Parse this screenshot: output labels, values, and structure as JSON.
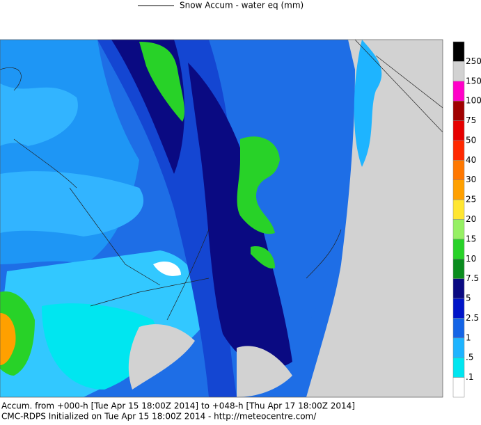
{
  "legend": {
    "title": "Snow Accum - water eq (mm)"
  },
  "colorbar": {
    "colors": [
      "#000000",
      "#d2d2d2",
      "#ff00c8",
      "#a00000",
      "#e60000",
      "#ff2800",
      "#ff7800",
      "#ffa000",
      "#ffe632",
      "#96f064",
      "#28d228",
      "#0a8c1e",
      "#0a0a82",
      "#0014c8",
      "#1464e6",
      "#1eb4ff",
      "#00e6f0",
      "#ffffff"
    ],
    "labels": [
      "250",
      "150",
      "100",
      "75",
      "50",
      "40",
      "30",
      "25",
      "20",
      "15",
      "10",
      "7.5",
      "5",
      "2.5",
      "1",
      ".5",
      ".1"
    ]
  },
  "footer": {
    "lines": [
      "Accum. from +000-h [Tue Apr 15 18:00Z 2014] to +048-h [Thu Apr 17 18:00Z 2014]",
      "CMC-RDPS Initialized on Tue Apr 15 18:00Z 2014 - http://meteocentre.com/"
    ]
  }
}
